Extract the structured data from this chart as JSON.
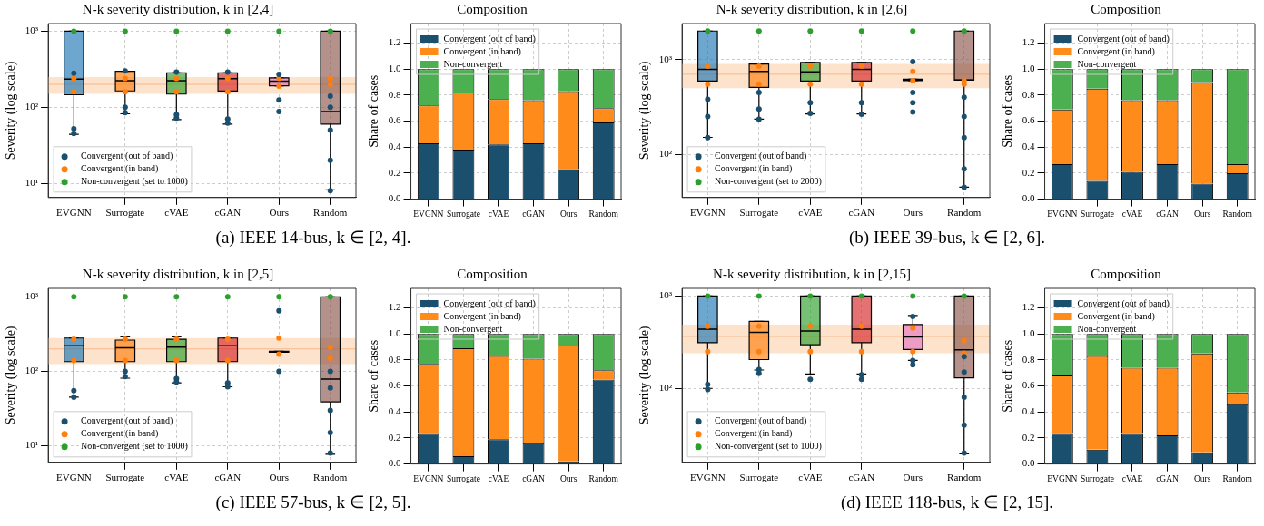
{
  "chart_data": [
    {
      "type": "box",
      "title": "N-k severity distribution, k in [2,4]",
      "ylabel": "Severity (log scale)",
      "categories": [
        "EVGNN",
        "Surrogate",
        "cVAE",
        "cGAN",
        "Ours",
        "Random"
      ],
      "log": "y",
      "ylim": [
        6.5,
        1260
      ],
      "yticks": [
        {
          "value": 10,
          "label": "10¹"
        },
        {
          "value": 100,
          "label": "10²"
        },
        {
          "value": 1000,
          "label": "10³"
        }
      ],
      "grid": true,
      "legend": "bottom left",
      "marker": "circle",
      "colors": [
        "#1f77b4",
        "#ff7f0e",
        "#2ca02c",
        "#d62728",
        "#e377c2",
        "#8c564b"
      ],
      "boxes": [
        {
          "low": 44,
          "q1": 146,
          "median": 234,
          "q3": 1000,
          "high": 1000
        },
        {
          "low": 82,
          "q1": 164,
          "median": 224,
          "q3": 297,
          "high": 297
        },
        {
          "low": 69,
          "q1": 149,
          "median": 224,
          "q3": 284,
          "high": 284
        },
        {
          "low": 60,
          "q1": 163,
          "median": 238,
          "q3": 284,
          "high": 284
        },
        {
          "low": 191,
          "q1": 191,
          "median": 220,
          "q3": 244,
          "high": 244
        },
        {
          "low": 8.2,
          "q1": 60,
          "median": 88,
          "q3": 1000,
          "high": 1000
        }
      ],
      "bands": [
        {
          "axis": "y",
          "from": 150,
          "to": 250,
          "color": "#fde3cc"
        }
      ],
      "ref_lines": [
        {
          "axis": "y",
          "value": 200,
          "color": "#f8b98a"
        }
      ],
      "series": [
        {
          "name": "Convergent (out of band)",
          "type": "scatter",
          "color": "#1b4f6e",
          "x": [
            "EVGNN",
            "EVGNN",
            "EVGNN",
            "Surrogate",
            "Surrogate",
            "Surrogate",
            "cVAE",
            "cVAE",
            "cVAE",
            "cGAN",
            "cGAN",
            "cGAN",
            "Ours",
            "Ours",
            "Ours",
            "Random",
            "Random",
            "Random",
            "Random",
            "Random"
          ],
          "values": [
            45,
            52,
            280,
            85,
            100,
            300,
            72,
            80,
            290,
            62,
            70,
            290,
            88,
            125,
            270,
            8,
            20,
            50,
            100,
            140
          ]
        },
        {
          "name": "Convergent (in band)",
          "type": "scatter",
          "color": "#ff7f0e",
          "x": [
            "EVGNN",
            "EVGNN",
            "Surrogate",
            "Surrogate",
            "cVAE",
            "cVAE",
            "cGAN",
            "cGAN",
            "Ours",
            "Ours",
            "Random",
            "Random"
          ],
          "values": [
            160,
            240,
            160,
            240,
            160,
            240,
            160,
            240,
            190,
            240,
            200,
            240
          ]
        },
        {
          "name": "Non-convergent (set to 1000)",
          "type": "scatter",
          "color": "#2ca02c",
          "x": [
            "EVGNN",
            "Surrogate",
            "cVAE",
            "cGAN",
            "Ours",
            "Random"
          ],
          "values": [
            1000,
            1000,
            1000,
            1000,
            1000,
            1000
          ]
        }
      ],
      "annotations": [
        "(a) IEEE 14-bus, k ∈ [2, 4]."
      ]
    },
    {
      "type": "bar",
      "title": "Composition",
      "ylabel": "Share of cases",
      "categories": [
        "EVGNN",
        "Surrogate",
        "cVAE",
        "cGAN",
        "Ours",
        "Random"
      ],
      "stacked": true,
      "ylim": [
        0,
        1.35
      ],
      "yticks": [
        {
          "value": 0,
          "label": "0.0"
        },
        {
          "value": 0.2,
          "label": "0.2"
        },
        {
          "value": 0.4,
          "label": "0.4"
        },
        {
          "value": 0.6,
          "label": "0.6"
        },
        {
          "value": 0.8,
          "label": "0.8"
        },
        {
          "value": 1,
          "label": "1.0"
        },
        {
          "value": 1.2,
          "label": "1.2"
        }
      ],
      "grid": true,
      "legend": "top left",
      "series": [
        {
          "name": "Convergent (out of band)",
          "color": "#1b4f6e",
          "values": [
            0.43,
            0.38,
            0.42,
            0.43,
            0.23,
            0.59
          ]
        },
        {
          "name": "Convergent (in band)",
          "color": "#ff8c1a",
          "values": [
            0.29,
            0.44,
            0.35,
            0.33,
            0.6,
            0.11
          ]
        },
        {
          "name": "Non-convergent",
          "color": "#4caf50",
          "values": [
            0.28,
            0.18,
            0.23,
            0.24,
            0.17,
            0.3
          ]
        }
      ]
    },
    {
      "type": "box",
      "title": "N-k severity distribution, k in [2,6]",
      "ylabel": "Severity (log scale)",
      "categories": [
        "EVGNN",
        "Surrogate",
        "cVAE",
        "cGAN",
        "Ours",
        "Random"
      ],
      "log": "y",
      "ylim": [
        35,
        2400
      ],
      "yticks": [
        {
          "value": 100,
          "label": "10²"
        },
        {
          "value": 1000,
          "label": "10³"
        }
      ],
      "grid": true,
      "legend": "bottom left",
      "marker": "circle",
      "colors": [
        "#1f77b4",
        "#ff7f0e",
        "#2ca02c",
        "#d62728",
        "#e377c2",
        "#8c564b"
      ],
      "boxes": [
        {
          "low": 151,
          "q1": 594,
          "median": 790,
          "q3": 2000,
          "high": 2000
        },
        {
          "low": 235,
          "q1": 508,
          "median": 752,
          "q3": 899,
          "high": 899
        },
        {
          "low": 267,
          "q1": 594,
          "median": 741,
          "q3": 931,
          "high": 931
        },
        {
          "low": 267,
          "q1": 594,
          "median": 790,
          "q3": 931,
          "high": 931
        },
        {
          "low": 600,
          "q1": 600,
          "median": 610,
          "q3": 620,
          "high": 620
        },
        {
          "low": 45,
          "q1": 608,
          "median": 608,
          "q3": 2000,
          "high": 2000
        }
      ],
      "bands": [
        {
          "axis": "y",
          "from": 500,
          "to": 900,
          "color": "#fde3cc"
        }
      ],
      "ref_lines": [
        {
          "axis": "y",
          "value": 700,
          "color": "#f8b98a"
        }
      ],
      "series": [
        {
          "name": "Convergent (out of band)",
          "type": "scatter",
          "color": "#1b4f6e",
          "x": [
            "EVGNN",
            "EVGNN",
            "EVGNN",
            "Surrogate",
            "Surrogate",
            "Surrogate",
            "cVAE",
            "cVAE",
            "cGAN",
            "cGAN",
            "Ours",
            "Ours",
            "Ours",
            "Ours",
            "Random",
            "Random",
            "Random",
            "Random",
            "Random"
          ],
          "values": [
            150,
            250,
            380,
            235,
            300,
            450,
            270,
            350,
            265,
            350,
            280,
            350,
            450,
            950,
            45,
            70,
            150,
            250,
            400
          ]
        },
        {
          "name": "Convergent (in band)",
          "type": "scatter",
          "color": "#ff7f0e",
          "x": [
            "EVGNN",
            "EVGNN",
            "Surrogate",
            "Surrogate",
            "cVAE",
            "cVAE",
            "cGAN",
            "cGAN",
            "Ours",
            "Ours",
            "Random",
            "Random"
          ],
          "values": [
            550,
            850,
            550,
            850,
            550,
            850,
            550,
            850,
            600,
            750,
            550,
            600
          ]
        },
        {
          "name": "Non-convergent (set to 2000)",
          "type": "scatter",
          "color": "#2ca02c",
          "x": [
            "EVGNN",
            "Surrogate",
            "cVAE",
            "cGAN",
            "Ours",
            "Random"
          ],
          "values": [
            2000,
            2000,
            2000,
            2000,
            2000,
            2000
          ]
        }
      ],
      "annotations": [
        "(b) IEEE 39-bus, k ∈ [2, 6]."
      ]
    },
    {
      "type": "bar",
      "title": "Composition",
      "ylabel": "Share of cases",
      "categories": [
        "EVGNN",
        "Surrogate",
        "cVAE",
        "cGAN",
        "Ours",
        "Random"
      ],
      "stacked": true,
      "ylim": [
        0,
        1.35
      ],
      "yticks": [
        {
          "value": 0,
          "label": "0.0"
        },
        {
          "value": 0.2,
          "label": "0.2"
        },
        {
          "value": 0.4,
          "label": "0.4"
        },
        {
          "value": 0.6,
          "label": "0.6"
        },
        {
          "value": 0.8,
          "label": "0.8"
        },
        {
          "value": 1,
          "label": "1.0"
        },
        {
          "value": 1.2,
          "label": "1.2"
        }
      ],
      "grid": true,
      "legend": "top left",
      "series": [
        {
          "name": "Convergent (out of band)",
          "color": "#1b4f6e",
          "values": [
            0.27,
            0.14,
            0.21,
            0.27,
            0.12,
            0.2
          ]
        },
        {
          "name": "Convergent (in band)",
          "color": "#ff8c1a",
          "values": [
            0.42,
            0.71,
            0.55,
            0.49,
            0.78,
            0.07
          ]
        },
        {
          "name": "Non-convergent",
          "color": "#4caf50",
          "values": [
            0.31,
            0.15,
            0.24,
            0.24,
            0.1,
            0.73
          ]
        }
      ]
    },
    {
      "type": "box",
      "title": "N-k severity distribution, k in [2,5]",
      "ylabel": "Severity (log scale)",
      "categories": [
        "EVGNN",
        "Surrogate",
        "cVAE",
        "cGAN",
        "Ours",
        "Random"
      ],
      "log": "y",
      "ylim": [
        6,
        1300
      ],
      "yticks": [
        {
          "value": 10,
          "label": "10¹"
        },
        {
          "value": 100,
          "label": "10²"
        },
        {
          "value": 1000,
          "label": "10³"
        }
      ],
      "grid": true,
      "legend": "bottom left",
      "marker": "circle",
      "colors": [
        "#1f77b4",
        "#ff7f0e",
        "#2ca02c",
        "#d62728",
        "#e377c2",
        "#8c564b"
      ],
      "boxes": [
        {
          "low": 45,
          "q1": 135,
          "median": 220,
          "q3": 280,
          "high": 280
        },
        {
          "low": 81,
          "q1": 135,
          "median": 207,
          "q3": 263,
          "high": 290
        },
        {
          "low": 70,
          "q1": 135,
          "median": 212,
          "q3": 270,
          "high": 290
        },
        {
          "low": 62,
          "q1": 135,
          "median": 220,
          "q3": 280,
          "high": 280
        },
        {
          "low": 180,
          "q1": 180,
          "median": 183,
          "q3": 186,
          "high": 186
        },
        {
          "low": 7.7,
          "q1": 39,
          "median": 79,
          "q3": 1000,
          "high": 1000
        }
      ],
      "bands": [
        {
          "axis": "y",
          "from": 125,
          "to": 280,
          "color": "#fde3cc"
        }
      ],
      "ref_lines": [
        {
          "axis": "y",
          "value": 200,
          "color": "#f8b98a"
        }
      ],
      "series": [
        {
          "name": "Convergent (out of band)",
          "type": "scatter",
          "color": "#1b4f6e",
          "x": [
            "EVGNN",
            "EVGNN",
            "Surrogate",
            "Surrogate",
            "cVAE",
            "cVAE",
            "cGAN",
            "cGAN",
            "Ours",
            "Ours",
            "Random",
            "Random",
            "Random",
            "Random",
            "Random"
          ],
          "values": [
            45,
            55,
            85,
            100,
            72,
            80,
            62,
            70,
            100,
            650,
            8,
            15,
            30,
            60,
            100
          ]
        },
        {
          "name": "Convergent (in band)",
          "type": "scatter",
          "color": "#ff7f0e",
          "x": [
            "EVGNN",
            "EVGNN",
            "Surrogate",
            "Surrogate",
            "cVAE",
            "cVAE",
            "cGAN",
            "cGAN",
            "Ours",
            "Ours",
            "Random",
            "Random"
          ],
          "values": [
            140,
            270,
            140,
            270,
            140,
            270,
            140,
            270,
            170,
            280,
            150,
            210
          ]
        },
        {
          "name": "Non-convergent (set to 1000)",
          "type": "scatter",
          "color": "#2ca02c",
          "x": [
            "EVGNN",
            "Surrogate",
            "cVAE",
            "cGAN",
            "Ours",
            "Random"
          ],
          "values": [
            1000,
            1000,
            1000,
            1000,
            1000,
            1000
          ]
        }
      ],
      "annotations": [
        "(c) IEEE 57-bus, k ∈ [2, 5]."
      ]
    },
    {
      "type": "bar",
      "title": "Composition",
      "ylabel": "Share of cases",
      "categories": [
        "EVGNN",
        "Surrogate",
        "cVAE",
        "cGAN",
        "Ours",
        "Random"
      ],
      "stacked": true,
      "ylim": [
        0,
        1.35
      ],
      "yticks": [
        {
          "value": 0,
          "label": "0.0"
        },
        {
          "value": 0.2,
          "label": "0.2"
        },
        {
          "value": 0.4,
          "label": "0.4"
        },
        {
          "value": 0.6,
          "label": "0.6"
        },
        {
          "value": 0.8,
          "label": "0.8"
        },
        {
          "value": 1,
          "label": "1.0"
        },
        {
          "value": 1.2,
          "label": "1.2"
        }
      ],
      "grid": true,
      "legend": "top left",
      "series": [
        {
          "name": "Convergent (out of band)",
          "color": "#1b4f6e",
          "values": [
            0.23,
            0.06,
            0.19,
            0.16,
            0.02,
            0.65
          ]
        },
        {
          "name": "Convergent (in band)",
          "color": "#ff8c1a",
          "values": [
            0.54,
            0.83,
            0.64,
            0.65,
            0.89,
            0.07
          ]
        },
        {
          "name": "Non-convergent",
          "color": "#4caf50",
          "values": [
            0.23,
            0.11,
            0.17,
            0.19,
            0.09,
            0.28
          ]
        }
      ]
    },
    {
      "type": "box",
      "title": "N-k severity distribution, k in [2,15]",
      "ylabel": "Severity (log scale)",
      "categories": [
        "EVGNN",
        "Surrogate",
        "cVAE",
        "cGAN",
        "Ours",
        "Random"
      ],
      "log": "y",
      "ylim": [
        15.8,
        1210
      ],
      "yticks": [
        {
          "value": 100,
          "label": "10²"
        },
        {
          "value": 1000,
          "label": "10³"
        }
      ],
      "grid": true,
      "legend": "bottom left",
      "marker": "circle",
      "colors": [
        "#1f77b4",
        "#ff7f0e",
        "#2ca02c",
        "#d62728",
        "#e377c2",
        "#8c564b"
      ],
      "boxes": [
        {
          "low": 100,
          "q1": 312,
          "median": 437,
          "q3": 1000,
          "high": 1000
        },
        {
          "low": 158,
          "q1": 205,
          "median": 405,
          "q3": 532,
          "high": 532
        },
        {
          "low": 143,
          "q1": 297,
          "median": 417,
          "q3": 1000,
          "high": 1000
        },
        {
          "low": 143,
          "q1": 312,
          "median": 437,
          "q3": 1000,
          "high": 1000
        },
        {
          "low": 201,
          "q1": 264,
          "median": 361,
          "q3": 492,
          "high": 615
        },
        {
          "low": 19.5,
          "q1": 130,
          "median": 262,
          "q3": 1000,
          "high": 1000
        }
      ],
      "bands": [
        {
          "axis": "y",
          "from": 240,
          "to": 490,
          "color": "#fde3cc"
        }
      ],
      "ref_lines": [
        {
          "axis": "y",
          "value": 365,
          "color": "#f8b98a"
        }
      ],
      "series": [
        {
          "name": "Convergent (out of band)",
          "type": "scatter",
          "color": "#1b4f6e",
          "x": [
            "EVGNN",
            "EVGNN",
            "Surrogate",
            "Surrogate",
            "cVAE",
            "cGAN",
            "cGAN",
            "Ours",
            "Ours",
            "Ours",
            "Random",
            "Random",
            "Random",
            "Random",
            "Random"
          ],
          "values": [
            97,
            110,
            145,
            160,
            125,
            125,
            140,
            180,
            200,
            600,
            20,
            40,
            80,
            150,
            220
          ]
        },
        {
          "name": "Convergent (in band)",
          "type": "scatter",
          "color": "#ff7f0e",
          "x": [
            "EVGNN",
            "EVGNN",
            "Surrogate",
            "Surrogate",
            "cVAE",
            "cVAE",
            "cGAN",
            "cGAN",
            "Ours",
            "Ours",
            "Random",
            "Random"
          ],
          "values": [
            250,
            470,
            250,
            470,
            250,
            470,
            250,
            470,
            250,
            450,
            240,
            330
          ]
        },
        {
          "name": "Non-convergent (set to 1000)",
          "type": "scatter",
          "color": "#2ca02c",
          "x": [
            "EVGNN",
            "Surrogate",
            "cVAE",
            "cGAN",
            "Ours",
            "Random"
          ],
          "values": [
            1000,
            1000,
            1000,
            1000,
            1000,
            1000
          ]
        }
      ],
      "annotations": [
        "(d) IEEE 118-bus, k ∈ [2, 15]."
      ]
    },
    {
      "type": "bar",
      "title": "Composition",
      "ylabel": "Share of cases",
      "categories": [
        "EVGNN",
        "Surrogate",
        "cVAE",
        "cGAN",
        "Ours",
        "Random"
      ],
      "stacked": true,
      "ylim": [
        0,
        1.35
      ],
      "yticks": [
        {
          "value": 0,
          "label": "0.0"
        },
        {
          "value": 0.2,
          "label": "0.2"
        },
        {
          "value": 0.4,
          "label": "0.4"
        },
        {
          "value": 0.6,
          "label": "0.6"
        },
        {
          "value": 0.8,
          "label": "0.8"
        },
        {
          "value": 1,
          "label": "1.0"
        },
        {
          "value": 1.2,
          "label": "1.2"
        }
      ],
      "grid": true,
      "legend": "top left",
      "series": [
        {
          "name": "Convergent (out of band)",
          "color": "#1b4f6e",
          "values": [
            0.23,
            0.11,
            0.23,
            0.22,
            0.09,
            0.46
          ]
        },
        {
          "name": "Convergent (in band)",
          "color": "#ff8c1a",
          "values": [
            0.45,
            0.72,
            0.51,
            0.52,
            0.76,
            0.09
          ]
        },
        {
          "name": "Non-convergent",
          "color": "#4caf50",
          "values": [
            0.32,
            0.17,
            0.26,
            0.26,
            0.15,
            0.45
          ]
        }
      ]
    }
  ]
}
